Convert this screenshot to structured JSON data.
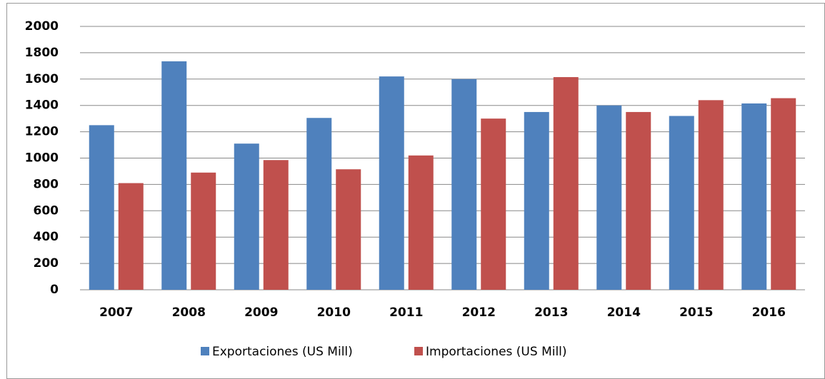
{
  "chart_data": {
    "type": "bar",
    "categories": [
      "2007",
      "2008",
      "2009",
      "2010",
      "2011",
      "2012",
      "2013",
      "2014",
      "2015",
      "2016"
    ],
    "series": [
      {
        "name": "Exportaciones (US Mill)",
        "color": "#4f81bd",
        "values": [
          1250,
          1735,
          1110,
          1305,
          1620,
          1600,
          1350,
          1400,
          1320,
          1415
        ]
      },
      {
        "name": "Importaciones (US Mill)",
        "color": "#c0504d",
        "values": [
          810,
          890,
          985,
          915,
          1020,
          1300,
          1615,
          1350,
          1440,
          1455
        ]
      }
    ],
    "ylim": [
      0,
      2000
    ],
    "yticks": [
      0,
      200,
      400,
      600,
      800,
      1000,
      1200,
      1400,
      1600,
      1800,
      2000
    ],
    "grid": true,
    "legend": "bottom"
  }
}
